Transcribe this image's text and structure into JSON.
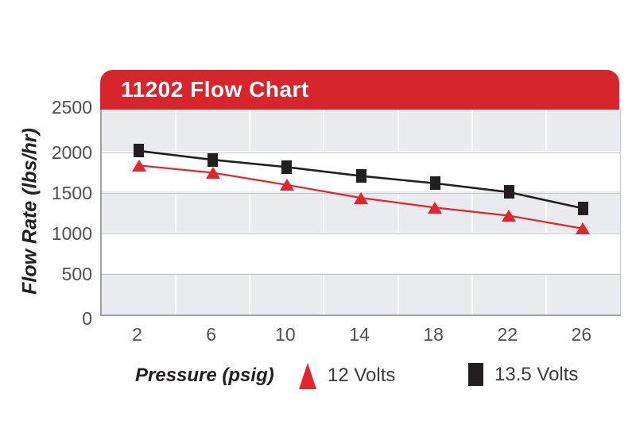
{
  "banner": {
    "title": "11202 Flow Chart"
  },
  "colors": {
    "banner_red": "#d6252b",
    "series_red": "#e6232a",
    "series_black": "#231f20",
    "band_gray": "#e9ebee",
    "grid_line": "#c3c5c7",
    "axis_line": "#9fa1a3",
    "tick_text": "#4f5052"
  },
  "chart_data": {
    "type": "line",
    "title": "11202 Flow Chart",
    "xlabel": "Pressure (psig)",
    "ylabel": "Flow Rate (lbs/hr)",
    "categories": [
      "2",
      "6",
      "10",
      "14",
      "18",
      "22",
      "26"
    ],
    "yticks": [
      "0",
      "500",
      "1000",
      "1500",
      "2000",
      "2500"
    ],
    "ytick_values": [
      0,
      500,
      1000,
      1500,
      2000,
      2500
    ],
    "ylim": [
      0,
      2500
    ],
    "grid": "alternating gray/white horizontal bands every 500 units, white vertical dividers between categories",
    "legend_position": "bottom",
    "series": [
      {
        "name": "12 Volts",
        "marker": "triangle",
        "color": "#e6232a",
        "values": [
          1840,
          1750,
          1600,
          1440,
          1320,
          1220,
          1060
        ]
      },
      {
        "name": "13.5 Volts",
        "marker": "square",
        "color": "#231f20",
        "values": [
          2020,
          1910,
          1820,
          1710,
          1620,
          1510,
          1310
        ]
      }
    ]
  }
}
